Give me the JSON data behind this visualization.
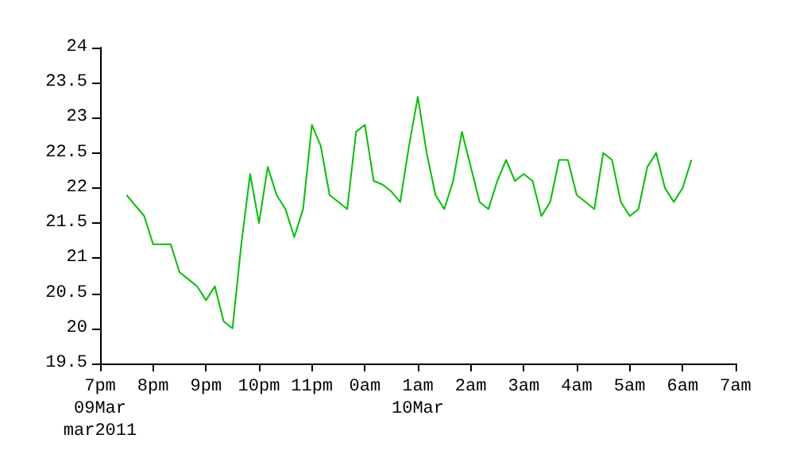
{
  "chart_data": {
    "type": "line",
    "grid": false,
    "marker": "none",
    "line_style": "solid",
    "xlim": [
      "2011-03-09T19:00",
      "2011-03-10T07:00"
    ],
    "xticks": [
      {
        "value": "2011-03-09T19:00",
        "label": "7pm\n09Mar\nmar2011"
      },
      {
        "value": "2011-03-09T20:00",
        "label": "8pm"
      },
      {
        "value": "2011-03-09T21:00",
        "label": "9pm"
      },
      {
        "value": "2011-03-09T22:00",
        "label": "10pm"
      },
      {
        "value": "2011-03-09T23:00",
        "label": "11pm"
      },
      {
        "value": "2011-03-10T00:00",
        "label": "0am"
      },
      {
        "value": "2011-03-10T01:00",
        "label": "1am\n10Mar"
      },
      {
        "value": "2011-03-10T02:00",
        "label": "2am"
      },
      {
        "value": "2011-03-10T03:00",
        "label": "3am"
      },
      {
        "value": "2011-03-10T04:00",
        "label": "4am"
      },
      {
        "value": "2011-03-10T05:00",
        "label": "5am"
      },
      {
        "value": "2011-03-10T06:00",
        "label": "6am"
      },
      {
        "value": "2011-03-10T07:00",
        "label": "7am"
      }
    ],
    "ylim": [
      19.5,
      24
    ],
    "yticks": [
      19.5,
      20,
      20.5,
      21,
      21.5,
      22,
      22.5,
      23,
      23.5,
      24
    ],
    "series": [
      {
        "color": "#00c000",
        "x": [
          "2011-03-09T19:30",
          "2011-03-09T19:40",
          "2011-03-09T19:50",
          "2011-03-09T20:00",
          "2011-03-09T20:10",
          "2011-03-09T20:20",
          "2011-03-09T20:30",
          "2011-03-09T20:40",
          "2011-03-09T20:50",
          "2011-03-09T21:00",
          "2011-03-09T21:10",
          "2011-03-09T21:20",
          "2011-03-09T21:30",
          "2011-03-09T21:40",
          "2011-03-09T21:50",
          "2011-03-09T22:00",
          "2011-03-09T22:10",
          "2011-03-09T22:20",
          "2011-03-09T22:30",
          "2011-03-09T22:40",
          "2011-03-09T22:50",
          "2011-03-09T23:00",
          "2011-03-09T23:10",
          "2011-03-09T23:20",
          "2011-03-09T23:30",
          "2011-03-09T23:40",
          "2011-03-09T23:50",
          "2011-03-10T00:00",
          "2011-03-10T00:10",
          "2011-03-10T00:20",
          "2011-03-10T00:30",
          "2011-03-10T00:40",
          "2011-03-10T00:50",
          "2011-03-10T01:00",
          "2011-03-10T01:10",
          "2011-03-10T01:20",
          "2011-03-10T01:30",
          "2011-03-10T01:40",
          "2011-03-10T01:50",
          "2011-03-10T02:00",
          "2011-03-10T02:10",
          "2011-03-10T02:20",
          "2011-03-10T02:30",
          "2011-03-10T02:40",
          "2011-03-10T02:50",
          "2011-03-10T03:00",
          "2011-03-10T03:10",
          "2011-03-10T03:20",
          "2011-03-10T03:30",
          "2011-03-10T03:40",
          "2011-03-10T03:50",
          "2011-03-10T04:00",
          "2011-03-10T04:10",
          "2011-03-10T04:20",
          "2011-03-10T04:30",
          "2011-03-10T04:40",
          "2011-03-10T04:50",
          "2011-03-10T05:00",
          "2011-03-10T05:10",
          "2011-03-10T05:20",
          "2011-03-10T05:30",
          "2011-03-10T05:40",
          "2011-03-10T05:50",
          "2011-03-10T06:00",
          "2011-03-10T06:10"
        ],
        "values": [
          21.9,
          21.75,
          21.6,
          21.2,
          21.2,
          21.2,
          20.8,
          20.7,
          20.6,
          20.4,
          20.6,
          20.1,
          20.0,
          21.2,
          22.2,
          21.5,
          22.3,
          21.9,
          21.7,
          21.3,
          21.7,
          22.9,
          22.6,
          21.9,
          21.8,
          21.7,
          22.8,
          22.9,
          22.1,
          22.05,
          21.95,
          21.8,
          22.6,
          23.3,
          22.5,
          21.9,
          21.7,
          22.1,
          22.8,
          22.3,
          21.8,
          21.7,
          22.1,
          22.4,
          22.1,
          22.2,
          22.1,
          21.6,
          21.8,
          22.4,
          22.4,
          21.9,
          21.8,
          21.7,
          22.5,
          22.4,
          21.8,
          21.6,
          21.7,
          22.3,
          22.5,
          22.0,
          21.8,
          22.0,
          22.4
        ]
      }
    ]
  }
}
